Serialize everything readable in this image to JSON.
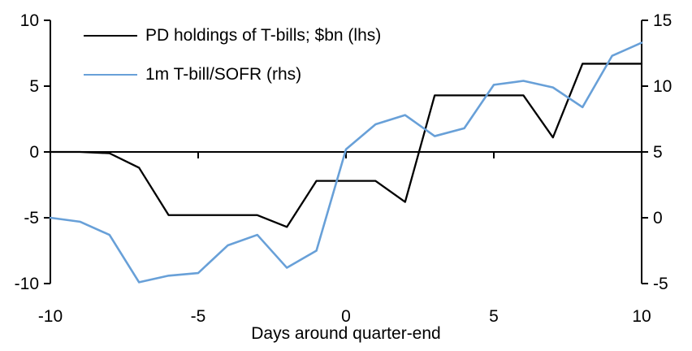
{
  "chart_data": {
    "type": "line",
    "title": "",
    "xlabel": "Days around quarter-end",
    "x": [
      -10,
      -9,
      -8,
      -7,
      -6,
      -5,
      -4,
      -3,
      -2,
      -1,
      0,
      1,
      2,
      3,
      4,
      5,
      6,
      7,
      8,
      9,
      10
    ],
    "series": [
      {
        "name": "PD holdings of T-bills; $bn (lhs)",
        "axis": "left",
        "color": "#000000",
        "width": 2.3,
        "values": [
          0.0,
          0.0,
          -0.1,
          -1.2,
          -4.8,
          -4.8,
          -4.8,
          -4.8,
          -5.7,
          -2.2,
          -2.2,
          -2.2,
          -3.8,
          4.3,
          4.3,
          4.3,
          4.3,
          1.1,
          6.7,
          6.7,
          6.7
        ]
      },
      {
        "name": "1m T-bill/SOFR (rhs)",
        "axis": "right",
        "color": "#68A0D8",
        "width": 2.6,
        "values": [
          0.0,
          -0.3,
          -1.3,
          -4.9,
          -4.4,
          -4.2,
          -2.1,
          -1.3,
          -3.8,
          -2.5,
          5.2,
          7.1,
          7.8,
          6.2,
          6.8,
          10.1,
          10.4,
          9.9,
          8.4,
          12.3,
          13.3
        ]
      }
    ],
    "axes": {
      "left": {
        "ticks": [
          10,
          5,
          0,
          -5,
          -10
        ],
        "range": [
          -10,
          10
        ]
      },
      "right": {
        "ticks": [
          15,
          10,
          5,
          0,
          -5
        ],
        "range": [
          -5,
          15
        ]
      },
      "x": {
        "ticks": [
          -10,
          -5,
          0,
          5,
          10
        ],
        "range": [
          -10,
          10
        ],
        "tick_labels": [
          "-10",
          "-5",
          "0",
          "5",
          "10"
        ]
      }
    },
    "zero_line": true,
    "grid": false,
    "legend_position": "top-left",
    "colors": {
      "axis": "#000000",
      "text": "#000000",
      "background": "#ffffff"
    }
  }
}
